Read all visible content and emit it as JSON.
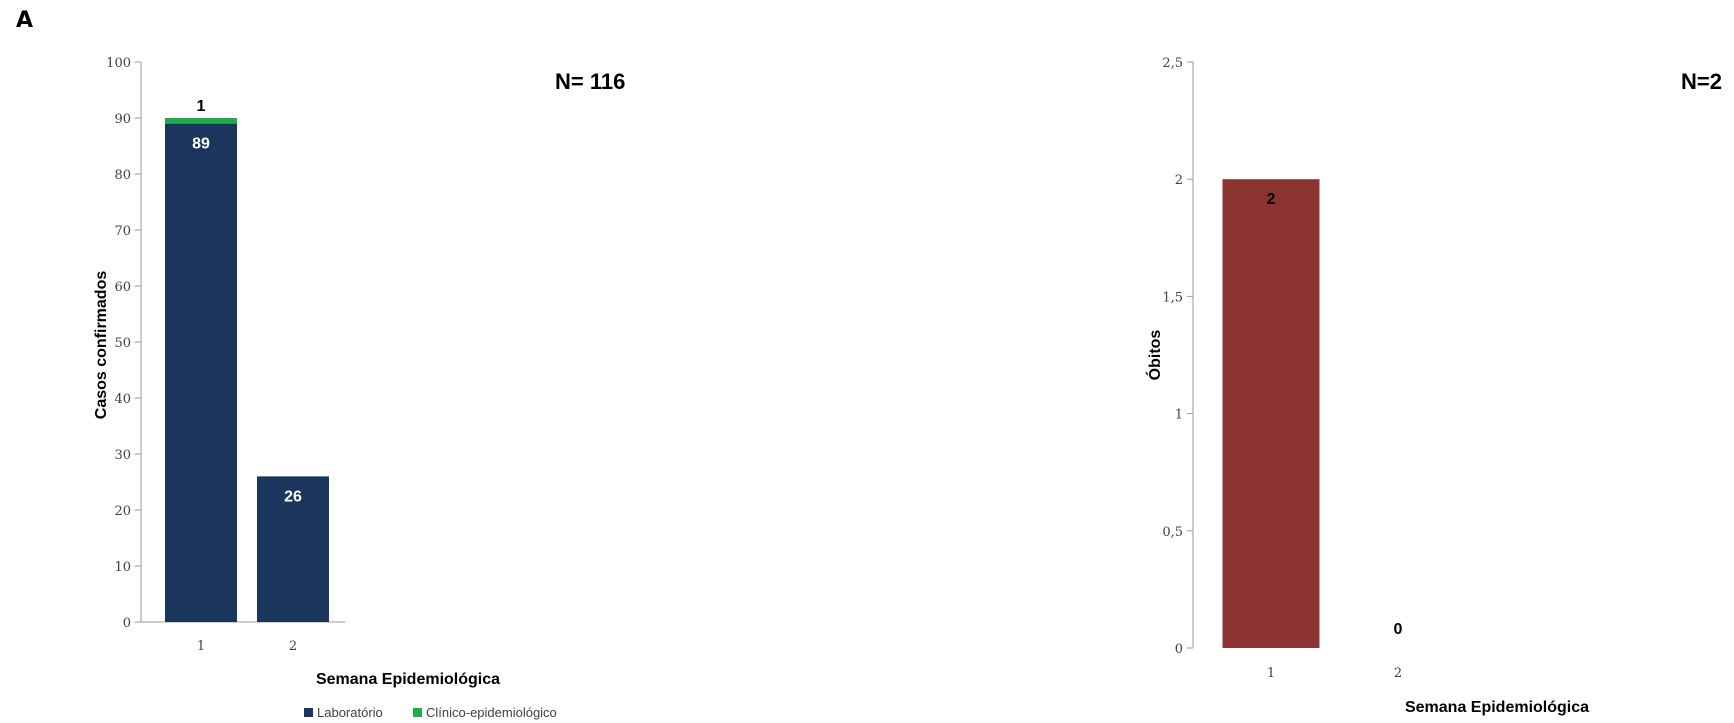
{
  "panel_label": "A",
  "chart_data": [
    {
      "type": "bar",
      "stacked": true,
      "categories": [
        "1",
        "2"
      ],
      "series": [
        {
          "name": "Laboratório",
          "values": [
            89,
            26
          ],
          "color": "#1b365d",
          "labels": [
            "89",
            "26"
          ],
          "label_color": "#ffffff"
        },
        {
          "name": "Clínico-epidemiológico",
          "values": [
            1,
            0
          ],
          "color": "#1fad4b",
          "labels": [
            "1",
            ""
          ],
          "label_color": "#000000"
        }
      ],
      "xlabel": "Semana Epidemiológica",
      "ylabel": "Casos confirmados",
      "ylim": [
        0,
        100
      ],
      "yticks": [
        "0",
        "10",
        "20",
        "30",
        "40",
        "50",
        "60",
        "70",
        "80",
        "90",
        "100"
      ],
      "annotation": "N= 116",
      "legend": "bottom",
      "grid": false
    },
    {
      "type": "bar",
      "categories": [
        "1",
        "2"
      ],
      "series": [
        {
          "values": [
            2,
            0
          ],
          "color": "#8b3432",
          "labels": [
            "2",
            "0"
          ],
          "label_color": "#000000"
        }
      ],
      "xlabel": "Semana Epidemiológica",
      "ylabel": "Óbitos",
      "ylim": [
        0,
        2.5
      ],
      "yticks": [
        "0",
        "0,5",
        "1",
        "1,5",
        "2",
        "2,5"
      ],
      "annotation": "N=2",
      "legend": "none",
      "grid": false
    }
  ]
}
